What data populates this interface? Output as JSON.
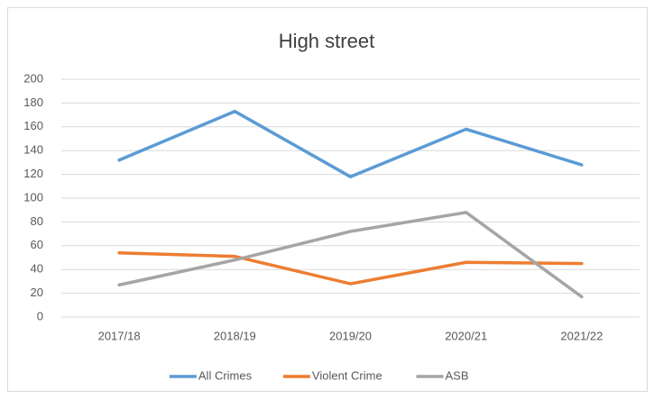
{
  "chart_data": {
    "type": "line",
    "title": "High street",
    "categories": [
      "2017/18",
      "2018/19",
      "2019/20",
      "2020/21",
      "2021/22"
    ],
    "series": [
      {
        "name": "All Crimes",
        "color": "#5b9bd5",
        "values": [
          132,
          173,
          118,
          158,
          128
        ]
      },
      {
        "name": "Violent Crime",
        "color": "#ed7d31",
        "values": [
          54,
          51,
          28,
          46,
          45
        ]
      },
      {
        "name": "ASB",
        "color": "#a5a5a5",
        "values": [
          27,
          48,
          72,
          88,
          17
        ]
      }
    ],
    "ylim": [
      0,
      200
    ],
    "yticks": [
      0,
      20,
      40,
      60,
      80,
      100,
      120,
      140,
      160,
      180,
      200
    ],
    "grid": true,
    "legend": "bottom"
  }
}
